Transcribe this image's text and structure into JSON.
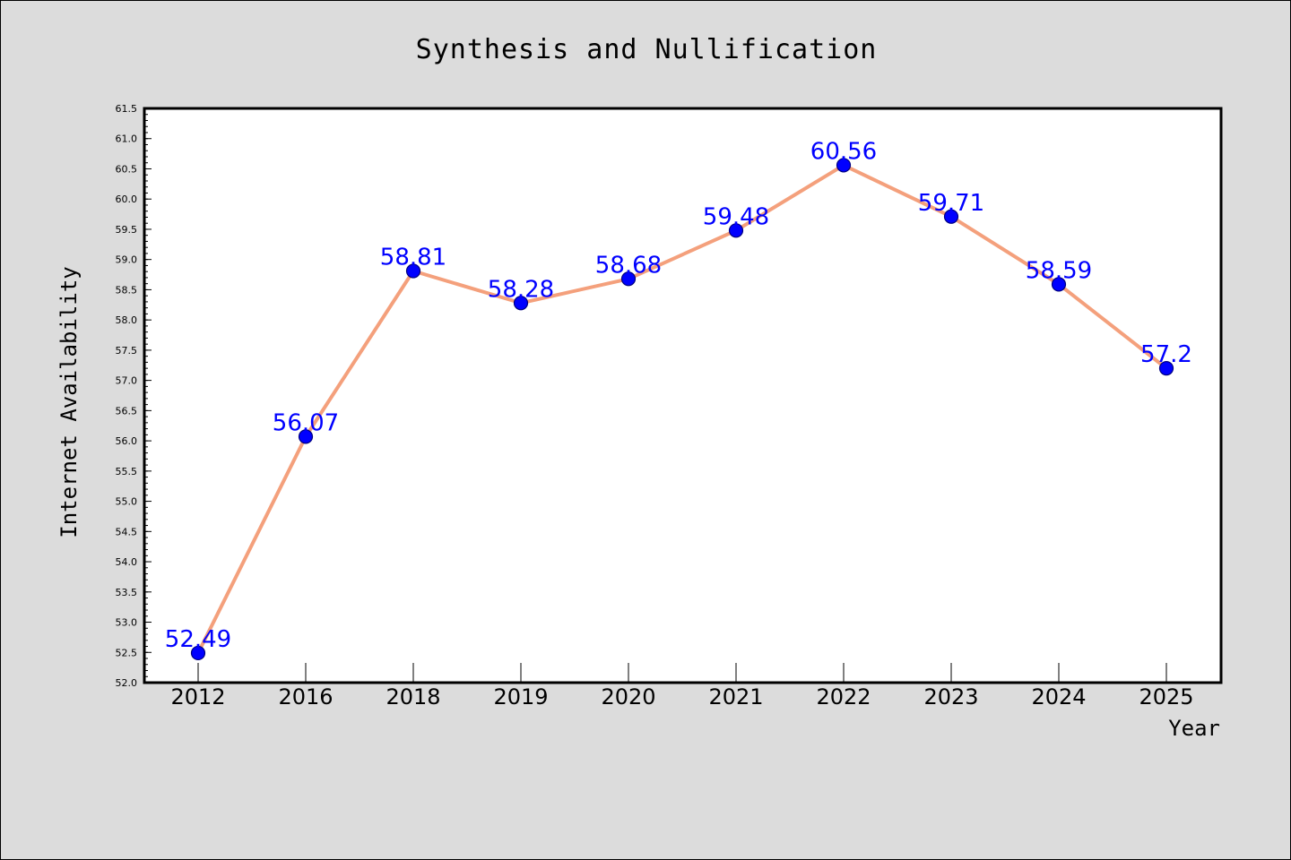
{
  "chart_data": {
    "type": "line",
    "title": "Synthesis and Nullification",
    "xlabel": "Year",
    "ylabel": "Internet Availability",
    "categories": [
      "2012",
      "2016",
      "2018",
      "2019",
      "2020",
      "2021",
      "2022",
      "2023",
      "2024",
      "2025"
    ],
    "values": [
      52.49,
      56.07,
      58.81,
      58.28,
      58.68,
      59.48,
      60.56,
      59.71,
      58.59,
      57.2
    ],
    "data_labels": [
      "52.49",
      "56.07",
      "58.81",
      "58.28",
      "58.68",
      "59.48",
      "60.56",
      "59.71",
      "58.59",
      "57.2"
    ],
    "ylim": [
      52.0,
      61.5
    ],
    "yticks": [
      "52.0",
      "52.5",
      "53.0",
      "53.5",
      "54.0",
      "54.5",
      "55.0",
      "55.5",
      "56.0",
      "56.5",
      "57.0",
      "57.5",
      "58.0",
      "58.5",
      "59.0",
      "59.5",
      "60.0",
      "60.5",
      "61.0",
      "61.5"
    ],
    "grid": false,
    "legend": "none",
    "colors": {
      "line": "#f4a07c",
      "marker_fill": "#0000ff",
      "marker_edge": "#000080",
      "data_label": "#0000ff",
      "plot_background": "#ffffff",
      "figure_background": "#dcdcdc"
    }
  }
}
